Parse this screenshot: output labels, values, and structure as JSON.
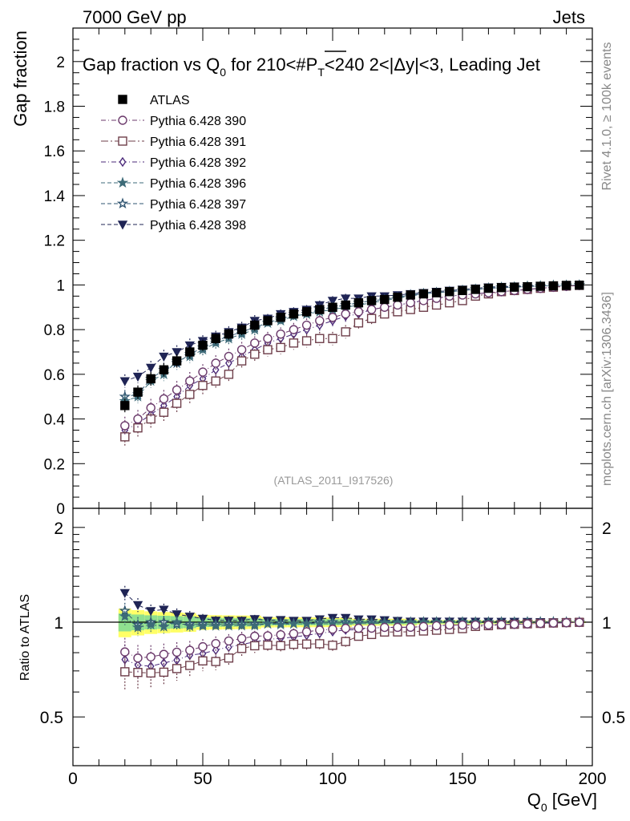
{
  "header": {
    "left": "7000 GeV pp",
    "right": "Jets"
  },
  "side_labels": {
    "rivet": "Rivet 4.1.0, ≥ 100k events",
    "mcplots": "mcplots.cern.ch [arXiv:1306.3436]"
  },
  "watermark": "(ATLAS_2011_I917526)",
  "colors": {
    "ATLAS": "#000000",
    "390": "#6b3a6b",
    "391": "#6e3e4a",
    "392": "#4b2a7a",
    "396": "#3d6b78",
    "397": "#2f5470",
    "398": "#1f2455",
    "band_yellow": "#ffff66",
    "band_green": "#8fe08f"
  },
  "chart_data": [
    {
      "panel": "main",
      "type": "scatter",
      "title_parts": {
        "pre": "Gap fraction vs Q",
        "q_sub": "0",
        "mid": " for 210<#",
        "p": "P",
        "t_sub": "T",
        "post": "<240  2<|Δy|<3, Leading Jet"
      },
      "ylabel": "Gap fraction",
      "xlim": [
        0,
        200
      ],
      "ylim": [
        0,
        2.15
      ],
      "yticks": [
        "0",
        "0.2",
        "0.4",
        "0.6",
        "0.8",
        "1",
        "1.2",
        "1.4",
        "1.6",
        "1.8",
        "2"
      ],
      "x": [
        20,
        25,
        30,
        35,
        40,
        45,
        50,
        55,
        60,
        65,
        70,
        75,
        80,
        85,
        90,
        95,
        100,
        105,
        110,
        115,
        120,
        125,
        130,
        135,
        140,
        145,
        150,
        155,
        160,
        165,
        170,
        175,
        180,
        185,
        190,
        195
      ],
      "series": [
        {
          "key": "ATLAS",
          "name": "ATLAS",
          "marker": "square-filled",
          "style": "none",
          "values": [
            0.46,
            0.52,
            0.58,
            0.62,
            0.66,
            0.7,
            0.73,
            0.76,
            0.78,
            0.8,
            0.82,
            0.84,
            0.855,
            0.87,
            0.88,
            0.89,
            0.9,
            0.91,
            0.92,
            0.93,
            0.935,
            0.945,
            0.955,
            0.96,
            0.965,
            0.97,
            0.975,
            0.98,
            0.985,
            0.988,
            0.99,
            0.992,
            0.994,
            0.996,
            0.998,
            0.999
          ],
          "err": [
            0.03,
            0.03,
            0.03,
            0.03,
            0.03,
            0.03,
            0.025,
            0.025,
            0.025,
            0.025,
            0.025,
            0.02,
            0.02,
            0.02,
            0.02,
            0.02,
            0.02,
            0.02,
            0.015,
            0.015,
            0.015,
            0.015,
            0.015,
            0.01,
            0.01,
            0.01,
            0.01,
            0.01,
            0.008,
            0.008,
            0.008,
            0.006,
            0.006,
            0.005,
            0.005,
            0.004
          ]
        },
        {
          "key": "390",
          "name": "Pythia 6.428 390",
          "marker": "circle-open",
          "style": "dash-dot",
          "values": [
            0.37,
            0.4,
            0.45,
            0.49,
            0.53,
            0.57,
            0.61,
            0.65,
            0.68,
            0.71,
            0.74,
            0.76,
            0.78,
            0.8,
            0.82,
            0.84,
            0.855,
            0.87,
            0.88,
            0.89,
            0.9,
            0.91,
            0.92,
            0.93,
            0.94,
            0.95,
            0.955,
            0.96,
            0.965,
            0.97,
            0.975,
            0.98,
            0.985,
            0.99,
            0.994,
            0.998
          ],
          "err": [
            0.04,
            0.04,
            0.04,
            0.04,
            0.04,
            0.04,
            0.035,
            0.035,
            0.035,
            0.035,
            0.03,
            0.03,
            0.03,
            0.03,
            0.03,
            0.025,
            0.025,
            0.025,
            0.025,
            0.02,
            0.02,
            0.02,
            0.02,
            0.02,
            0.015,
            0.015,
            0.015,
            0.012,
            0.012,
            0.01,
            0.01,
            0.008,
            0.008,
            0.006,
            0.006,
            0.005
          ]
        },
        {
          "key": "391",
          "name": "Pythia 6.428 391",
          "marker": "square-open",
          "style": "long-dash-dot",
          "values": [
            0.32,
            0.36,
            0.4,
            0.43,
            0.47,
            0.51,
            0.55,
            0.57,
            0.6,
            0.66,
            0.69,
            0.71,
            0.72,
            0.74,
            0.75,
            0.76,
            0.76,
            0.79,
            0.83,
            0.85,
            0.87,
            0.88,
            0.89,
            0.9,
            0.91,
            0.92,
            0.93,
            0.95,
            0.96,
            0.97,
            0.975,
            0.98,
            0.985,
            0.99,
            0.995,
            0.998
          ],
          "err": [
            0.04,
            0.04,
            0.04,
            0.04,
            0.04,
            0.04,
            0.04,
            0.035,
            0.035,
            0.035,
            0.035,
            0.03,
            0.03,
            0.03,
            0.03,
            0.03,
            0.03,
            0.03,
            0.025,
            0.025,
            0.02,
            0.02,
            0.02,
            0.02,
            0.02,
            0.015,
            0.015,
            0.015,
            0.012,
            0.01,
            0.01,
            0.008,
            0.008,
            0.006,
            0.006,
            0.005
          ]
        },
        {
          "key": "392",
          "name": "Pythia 6.428 392",
          "marker": "diamond-open",
          "style": "dash-dot",
          "values": [
            0.35,
            0.38,
            0.42,
            0.46,
            0.5,
            0.55,
            0.58,
            0.62,
            0.65,
            0.68,
            0.71,
            0.74,
            0.76,
            0.78,
            0.8,
            0.82,
            0.84,
            0.86,
            0.87,
            0.89,
            0.9,
            0.91,
            0.92,
            0.93,
            0.94,
            0.95,
            0.955,
            0.96,
            0.965,
            0.97,
            0.975,
            0.98,
            0.985,
            0.99,
            0.994,
            0.998
          ],
          "err": [
            0.04,
            0.04,
            0.04,
            0.04,
            0.04,
            0.04,
            0.035,
            0.035,
            0.035,
            0.035,
            0.03,
            0.03,
            0.03,
            0.03,
            0.03,
            0.025,
            0.025,
            0.025,
            0.025,
            0.02,
            0.02,
            0.02,
            0.02,
            0.02,
            0.015,
            0.015,
            0.015,
            0.012,
            0.012,
            0.01,
            0.01,
            0.008,
            0.008,
            0.006,
            0.006,
            0.005
          ]
        },
        {
          "key": "396",
          "name": "Pythia 6.428 396",
          "marker": "star-filled",
          "style": "dashed",
          "values": [
            0.48,
            0.5,
            0.57,
            0.6,
            0.66,
            0.68,
            0.71,
            0.74,
            0.76,
            0.78,
            0.8,
            0.83,
            0.84,
            0.86,
            0.87,
            0.88,
            0.89,
            0.9,
            0.91,
            0.92,
            0.93,
            0.94,
            0.95,
            0.96,
            0.965,
            0.97,
            0.975,
            0.98,
            0.985,
            0.988,
            0.99,
            0.993,
            0.995,
            0.997,
            0.998,
            0.999
          ],
          "err": [
            0.03,
            0.03,
            0.03,
            0.03,
            0.03,
            0.03,
            0.025,
            0.025,
            0.025,
            0.025,
            0.025,
            0.02,
            0.02,
            0.02,
            0.02,
            0.02,
            0.02,
            0.02,
            0.015,
            0.015,
            0.015,
            0.015,
            0.015,
            0.01,
            0.01,
            0.01,
            0.01,
            0.01,
            0.008,
            0.008,
            0.008,
            0.006,
            0.006,
            0.005,
            0.005,
            0.004
          ]
        },
        {
          "key": "397",
          "name": "Pythia 6.428 397",
          "marker": "star-open",
          "style": "dashed",
          "values": [
            0.5,
            0.51,
            0.58,
            0.62,
            0.65,
            0.69,
            0.72,
            0.75,
            0.77,
            0.79,
            0.81,
            0.83,
            0.85,
            0.86,
            0.87,
            0.89,
            0.9,
            0.91,
            0.92,
            0.93,
            0.935,
            0.945,
            0.955,
            0.96,
            0.965,
            0.97,
            0.975,
            0.98,
            0.985,
            0.988,
            0.99,
            0.993,
            0.995,
            0.997,
            0.998,
            0.999
          ],
          "err": [
            0.03,
            0.03,
            0.03,
            0.03,
            0.03,
            0.03,
            0.025,
            0.025,
            0.025,
            0.025,
            0.025,
            0.02,
            0.02,
            0.02,
            0.02,
            0.02,
            0.02,
            0.02,
            0.015,
            0.015,
            0.015,
            0.015,
            0.015,
            0.01,
            0.01,
            0.01,
            0.01,
            0.01,
            0.008,
            0.008,
            0.008,
            0.006,
            0.006,
            0.005,
            0.005,
            0.004
          ]
        },
        {
          "key": "398",
          "name": "Pythia 6.428 398",
          "marker": "triangle-down-filled",
          "style": "dashed",
          "values": [
            0.57,
            0.59,
            0.63,
            0.68,
            0.7,
            0.73,
            0.75,
            0.77,
            0.79,
            0.81,
            0.84,
            0.85,
            0.87,
            0.88,
            0.89,
            0.91,
            0.93,
            0.94,
            0.94,
            0.95,
            0.95,
            0.955,
            0.96,
            0.965,
            0.97,
            0.975,
            0.98,
            0.985,
            0.99,
            0.992,
            0.994,
            0.995,
            0.996,
            0.997,
            0.998,
            0.999
          ],
          "err": [
            0.03,
            0.03,
            0.03,
            0.03,
            0.03,
            0.03,
            0.025,
            0.025,
            0.025,
            0.025,
            0.025,
            0.02,
            0.02,
            0.02,
            0.02,
            0.02,
            0.02,
            0.02,
            0.015,
            0.015,
            0.015,
            0.015,
            0.015,
            0.01,
            0.01,
            0.01,
            0.01,
            0.01,
            0.008,
            0.008,
            0.008,
            0.006,
            0.006,
            0.005,
            0.005,
            0.004
          ]
        }
      ]
    },
    {
      "panel": "ratio",
      "type": "scatter",
      "ylabel": "Ratio to ATLAS",
      "xlabel": "Q",
      "xlabel_sub": "0",
      "xlabel_unit": " [GeV]",
      "xlim": [
        0,
        200
      ],
      "ylim": [
        0.35,
        2.3
      ],
      "yscale": "log",
      "yticks": [
        "0.5",
        "1",
        "2"
      ],
      "xticks": [
        "0",
        "50",
        "100",
        "150",
        "200"
      ],
      "reference": 1.0,
      "band": "ATLAS uncertainty (yellow/green)"
    }
  ]
}
